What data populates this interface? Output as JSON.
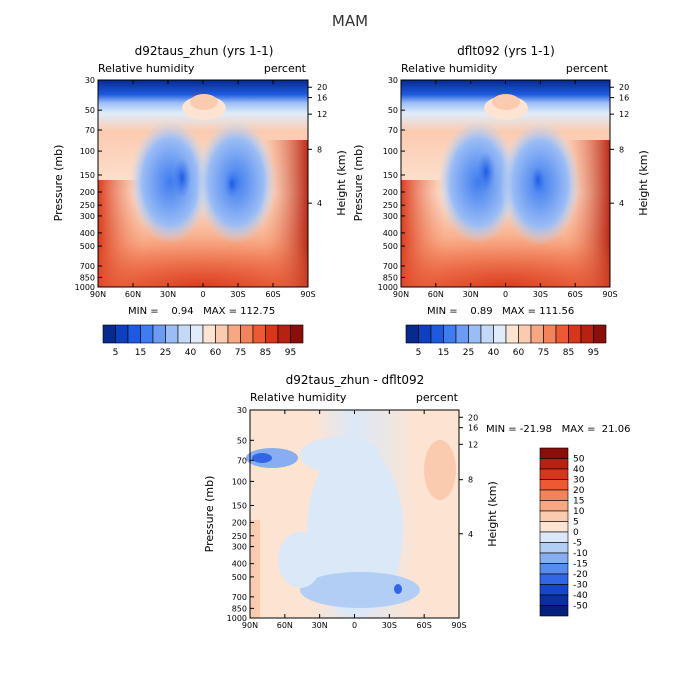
{
  "figure": {
    "title": "MAM"
  },
  "chart_data": [
    {
      "type": "contour",
      "title": "d92taus_zhun (yrs 1-1)",
      "left_label": "Relative humidity",
      "right_label": "percent",
      "ylabel": "Pressure (mb)",
      "ylabel_right": "Height (km)",
      "x_ticks": [
        "90N",
        "60N",
        "30N",
        "0",
        "30S",
        "60S",
        "90S"
      ],
      "y_ticks": [
        "30",
        "50",
        "70",
        "100",
        "150",
        "200",
        "250",
        "300",
        "400",
        "500",
        "700",
        "850",
        "1000"
      ],
      "y_right_ticks": [
        "20",
        "16",
        "12",
        "8",
        "4"
      ],
      "min_max_text": "MIN =    0.94   MAX = 112.75",
      "min": 0.94,
      "max": 112.75,
      "colorbar_labels": [
        "5",
        "15",
        "25",
        "40",
        "60",
        "75",
        "85",
        "95"
      ],
      "colorbar_colors": [
        "#062a8d",
        "#0d3fbf",
        "#1e5ae0",
        "#3f7cf0",
        "#6c9cf2",
        "#9bbdf5",
        "#c4d9f7",
        "#e0ecfa",
        "#fde4d2",
        "#fbcbb0",
        "#f7a782",
        "#f3835a",
        "#ec5a33",
        "#d8361a",
        "#b52212",
        "#8a0f0a"
      ]
    },
    {
      "type": "contour",
      "title": "dflt092 (yrs 1-1)",
      "left_label": "Relative humidity",
      "right_label": "percent",
      "ylabel": "Pressure (mb)",
      "ylabel_right": "Height (km)",
      "x_ticks": [
        "90N",
        "60N",
        "30N",
        "0",
        "30S",
        "60S",
        "90S"
      ],
      "y_ticks": [
        "30",
        "50",
        "70",
        "100",
        "150",
        "200",
        "250",
        "300",
        "400",
        "500",
        "700",
        "850",
        "1000"
      ],
      "y_right_ticks": [
        "20",
        "16",
        "12",
        "8",
        "4"
      ],
      "min_max_text": "MIN =    0.89   MAX = 111.56",
      "min": 0.89,
      "max": 111.56,
      "colorbar_labels": [
        "5",
        "15",
        "25",
        "40",
        "60",
        "75",
        "85",
        "95"
      ],
      "colorbar_colors": [
        "#062a8d",
        "#0d3fbf",
        "#1e5ae0",
        "#3f7cf0",
        "#6c9cf2",
        "#9bbdf5",
        "#c4d9f7",
        "#e0ecfa",
        "#fde4d2",
        "#fbcbb0",
        "#f7a782",
        "#f3835a",
        "#ec5a33",
        "#d8361a",
        "#b52212",
        "#8a0f0a"
      ]
    },
    {
      "type": "contour",
      "title": "d92taus_zhun - dflt092",
      "left_label": "Relative humidity",
      "right_label": "percent",
      "ylabel": "Pressure (mb)",
      "ylabel_right": "Height (km)",
      "x_ticks": [
        "90N",
        "60N",
        "30N",
        "0",
        "30S",
        "60S",
        "90S"
      ],
      "y_ticks": [
        "30",
        "50",
        "70",
        "100",
        "150",
        "200",
        "250",
        "300",
        "400",
        "500",
        "700",
        "850",
        "1000"
      ],
      "y_right_ticks": [
        "20",
        "16",
        "12",
        "8",
        "4"
      ],
      "min_max_text": "MIN = -21.98   MAX =  21.06",
      "min": -21.98,
      "max": 21.06,
      "colorbar_labels": [
        "50",
        "40",
        "30",
        "20",
        "15",
        "10",
        "5",
        "0",
        "-5",
        "-10",
        "-15",
        "-20",
        "-30",
        "-40",
        "-50"
      ],
      "colorbar_colors": [
        "#8a0f0a",
        "#b52212",
        "#d8361a",
        "#ec5a33",
        "#f3835a",
        "#f7a782",
        "#fbcbb0",
        "#fde4d2",
        "#dbe8f8",
        "#b3cef4",
        "#88aef1",
        "#5a8ced",
        "#3366e6",
        "#1746c9",
        "#0b2fa3",
        "#061f7a"
      ]
    }
  ]
}
